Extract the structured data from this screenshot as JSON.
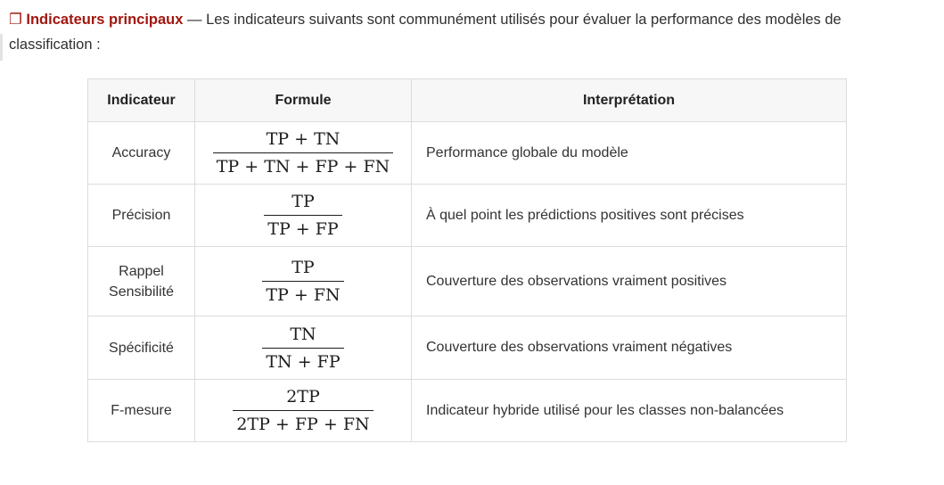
{
  "intro": {
    "marker": "❐",
    "lead": "Indicateurs principaux",
    "text": " — Les indicateurs suivants sont communément utilisés pour évaluer la performance des modèles de classification :"
  },
  "table": {
    "headers": [
      "Indicateur",
      "Formule",
      "Interprétation"
    ],
    "rows": [
      {
        "name": [
          "Accuracy"
        ],
        "numerator": "TP + TN",
        "denominator": "TP + TN + FP + FN",
        "interpretation": "Performance globale du modèle"
      },
      {
        "name": [
          "Précision"
        ],
        "numerator": "TP",
        "denominator": "TP + FP",
        "interpretation": "À quel point les prédictions positives sont précises"
      },
      {
        "name": [
          "Rappel",
          "Sensibilité"
        ],
        "numerator": "TP",
        "denominator": "TP + FN",
        "interpretation": "Couverture des observations vraiment positives"
      },
      {
        "name": [
          "Spécificité"
        ],
        "numerator": "TN",
        "denominator": "TN + FP",
        "interpretation": "Couverture des observations vraiment négatives"
      },
      {
        "name": [
          "F-mesure"
        ],
        "numerator": "2TP",
        "denominator": "2TP + FP + FN",
        "interpretation": "Indicateur hybride utilisé pour les classes non-balancées"
      }
    ]
  }
}
